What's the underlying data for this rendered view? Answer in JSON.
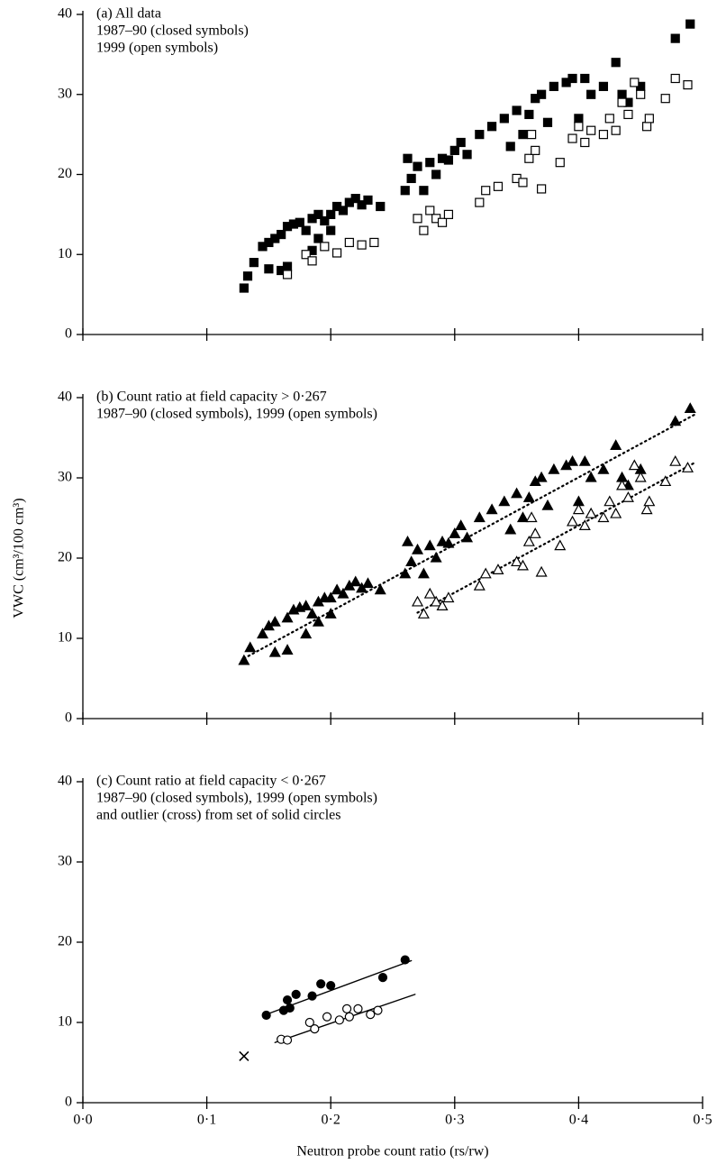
{
  "chart_data": [
    {
      "type": "scatter",
      "annotation": [
        "(a) All data",
        "1987–90 (closed symbols)",
        "1999 (open symbols)"
      ],
      "xlim": [
        0,
        0.5
      ],
      "ylim": [
        0,
        40
      ],
      "yticks": [
        0,
        10,
        20,
        30,
        40
      ],
      "xticks": [
        0,
        0.1,
        0.2,
        0.3,
        0.4,
        0.5
      ],
      "xtick_labels": false,
      "series": [
        {
          "marker": "square",
          "filled": true,
          "color": "#000",
          "x": [
            0.13,
            0.133,
            0.138,
            0.145,
            0.15,
            0.155,
            0.16,
            0.165,
            0.17,
            0.175,
            0.18,
            0.185,
            0.19,
            0.195,
            0.2,
            0.205,
            0.21,
            0.215,
            0.22,
            0.225,
            0.23,
            0.24,
            0.26,
            0.262,
            0.265,
            0.27,
            0.275,
            0.28,
            0.285,
            0.29,
            0.295,
            0.3,
            0.305,
            0.31,
            0.32,
            0.33,
            0.34,
            0.345,
            0.35,
            0.355,
            0.36,
            0.365,
            0.37,
            0.375,
            0.38,
            0.39,
            0.395,
            0.4,
            0.405,
            0.41,
            0.42,
            0.43,
            0.435,
            0.44,
            0.45,
            0.478,
            0.49,
            0.15,
            0.16,
            0.165,
            0.185,
            0.19,
            0.2
          ],
          "values": [
            5.8,
            7.3,
            9,
            11,
            11.5,
            12,
            12.5,
            13.5,
            13.8,
            14,
            13,
            14.5,
            15,
            14.2,
            15,
            16,
            15.5,
            16.5,
            17,
            16.2,
            16.8,
            16,
            18,
            22,
            19.5,
            21,
            18,
            21.5,
            20,
            22,
            21.8,
            23,
            24,
            22.5,
            25,
            26,
            27,
            23.5,
            28,
            25,
            27.5,
            29.5,
            30,
            26.5,
            31,
            31.5,
            32,
            27,
            32,
            30,
            31,
            34,
            30,
            29,
            31,
            37,
            38.8,
            8.2,
            8,
            8.5,
            10.5,
            12,
            13
          ]
        },
        {
          "marker": "square",
          "filled": false,
          "color": "#000",
          "x": [
            0.165,
            0.18,
            0.185,
            0.195,
            0.205,
            0.215,
            0.225,
            0.235,
            0.27,
            0.275,
            0.28,
            0.285,
            0.29,
            0.295,
            0.32,
            0.325,
            0.335,
            0.35,
            0.355,
            0.36,
            0.365,
            0.37,
            0.362,
            0.385,
            0.395,
            0.4,
            0.405,
            0.41,
            0.42,
            0.425,
            0.43,
            0.435,
            0.44,
            0.445,
            0.45,
            0.455,
            0.457,
            0.47,
            0.478,
            0.488
          ],
          "values": [
            7.5,
            10,
            9.2,
            11,
            10.2,
            11.5,
            11.2,
            11.5,
            14.5,
            13,
            15.5,
            14.5,
            14,
            15,
            16.5,
            18,
            18.5,
            19.5,
            19,
            22,
            23,
            18.2,
            25,
            21.5,
            24.5,
            26,
            24,
            25.5,
            25,
            27,
            25.5,
            29,
            27.5,
            31.5,
            30,
            26,
            27,
            29.5,
            32,
            31.2
          ]
        }
      ]
    },
    {
      "type": "scatter",
      "annotation": [
        "(b) Count ratio at field capacity > 0·267",
        "1987–90 (closed symbols), 1999 (open symbols)"
      ],
      "ylabel": "VWC (cm³/100 cm³)",
      "xlim": [
        0,
        0.5
      ],
      "ylim": [
        0,
        40
      ],
      "yticks": [
        0,
        10,
        20,
        30,
        40
      ],
      "xticks": [
        0,
        0.1,
        0.2,
        0.3,
        0.4,
        0.5
      ],
      "xtick_labels": false,
      "series": [
        {
          "marker": "triangle",
          "filled": true,
          "color": "#000",
          "x": [
            0.13,
            0.135,
            0.145,
            0.15,
            0.155,
            0.165,
            0.17,
            0.175,
            0.18,
            0.185,
            0.19,
            0.195,
            0.2,
            0.205,
            0.21,
            0.215,
            0.22,
            0.225,
            0.23,
            0.24,
            0.26,
            0.262,
            0.265,
            0.27,
            0.275,
            0.28,
            0.285,
            0.29,
            0.295,
            0.3,
            0.305,
            0.31,
            0.32,
            0.33,
            0.34,
            0.345,
            0.35,
            0.355,
            0.36,
            0.365,
            0.37,
            0.375,
            0.38,
            0.39,
            0.395,
            0.4,
            0.405,
            0.41,
            0.42,
            0.43,
            0.435,
            0.44,
            0.45,
            0.478,
            0.49,
            0.155,
            0.165,
            0.18,
            0.19,
            0.2
          ],
          "values": [
            7.2,
            8.8,
            10.5,
            11.5,
            12,
            12.5,
            13.5,
            13.8,
            14,
            13,
            14.5,
            15,
            15,
            16,
            15.5,
            16.5,
            17,
            16.2,
            16.8,
            16,
            18,
            22,
            19.5,
            21,
            18,
            21.5,
            20,
            22,
            21.8,
            23,
            24,
            22.5,
            25,
            26,
            27,
            23.5,
            28,
            25,
            27.5,
            29.5,
            30,
            26.5,
            31,
            31.5,
            32,
            27,
            32,
            30,
            31,
            34,
            30,
            29,
            31,
            37,
            38.6,
            8.2,
            8.5,
            10.5,
            12,
            13
          ]
        },
        {
          "marker": "triangle",
          "filled": false,
          "color": "#000",
          "x": [
            0.27,
            0.275,
            0.28,
            0.285,
            0.29,
            0.295,
            0.32,
            0.325,
            0.335,
            0.35,
            0.355,
            0.36,
            0.362,
            0.365,
            0.37,
            0.385,
            0.395,
            0.4,
            0.405,
            0.41,
            0.42,
            0.425,
            0.43,
            0.435,
            0.44,
            0.445,
            0.45,
            0.455,
            0.457,
            0.47,
            0.478,
            0.488
          ],
          "values": [
            14.5,
            13,
            15.5,
            14.5,
            14,
            15,
            16.5,
            18,
            18.5,
            19.5,
            19,
            22,
            25,
            23,
            18.2,
            21.5,
            24.5,
            26,
            24,
            25.5,
            25,
            27,
            25.5,
            29,
            27.5,
            31.5,
            30,
            26,
            27,
            29.5,
            32,
            31.2
          ]
        }
      ],
      "lines": [
        {
          "style": "dotted",
          "x": [
            0.13,
            0.495
          ],
          "values": [
            7.5,
            38
          ]
        },
        {
          "style": "dotted",
          "x": [
            0.27,
            0.495
          ],
          "values": [
            13.2,
            32
          ]
        }
      ]
    },
    {
      "type": "scatter",
      "annotation": [
        "(c) Count ratio at field capacity < 0·267",
        "1987–90 (closed symbols), 1999 (open symbols)",
        "and outlier (cross) from set of solid circles"
      ],
      "xlabel": "Neutron probe count ratio (rs/rw)",
      "xlim": [
        0,
        0.5
      ],
      "ylim": [
        0,
        40
      ],
      "yticks": [
        0,
        10,
        20,
        30,
        40
      ],
      "xticks": [
        {
          "value": 0,
          "label": "0·0"
        },
        {
          "value": 0.1,
          "label": "0·1"
        },
        {
          "value": 0.2,
          "label": "0·2"
        },
        {
          "value": 0.3,
          "label": "0·3"
        },
        {
          "value": 0.4,
          "label": "0·4"
        },
        {
          "value": 0.5,
          "label": "0·5"
        }
      ],
      "xtick_labels": true,
      "series": [
        {
          "marker": "circle",
          "filled": true,
          "color": "#000",
          "x": [
            0.148,
            0.162,
            0.165,
            0.167,
            0.172,
            0.185,
            0.192,
            0.2,
            0.242,
            0.26
          ],
          "values": [
            10.9,
            11.5,
            12.8,
            11.8,
            13.5,
            13.3,
            14.8,
            14.6,
            15.6,
            17.8
          ]
        },
        {
          "marker": "circle",
          "filled": false,
          "color": "#000",
          "x": [
            0.16,
            0.165,
            0.183,
            0.187,
            0.197,
            0.207,
            0.213,
            0.215,
            0.222,
            0.232,
            0.238
          ],
          "values": [
            7.9,
            7.8,
            10,
            9.2,
            10.7,
            10.3,
            11.7,
            10.7,
            11.7,
            11,
            11.5
          ]
        },
        {
          "marker": "cross",
          "filled": true,
          "color": "#000",
          "x": [
            0.13
          ],
          "values": [
            5.8
          ]
        }
      ],
      "lines": [
        {
          "style": "solid",
          "x": [
            0.148,
            0.265
          ],
          "values": [
            11,
            17.7
          ]
        },
        {
          "style": "solid",
          "x": [
            0.155,
            0.268
          ],
          "values": [
            7.5,
            13.5
          ]
        }
      ]
    }
  ]
}
